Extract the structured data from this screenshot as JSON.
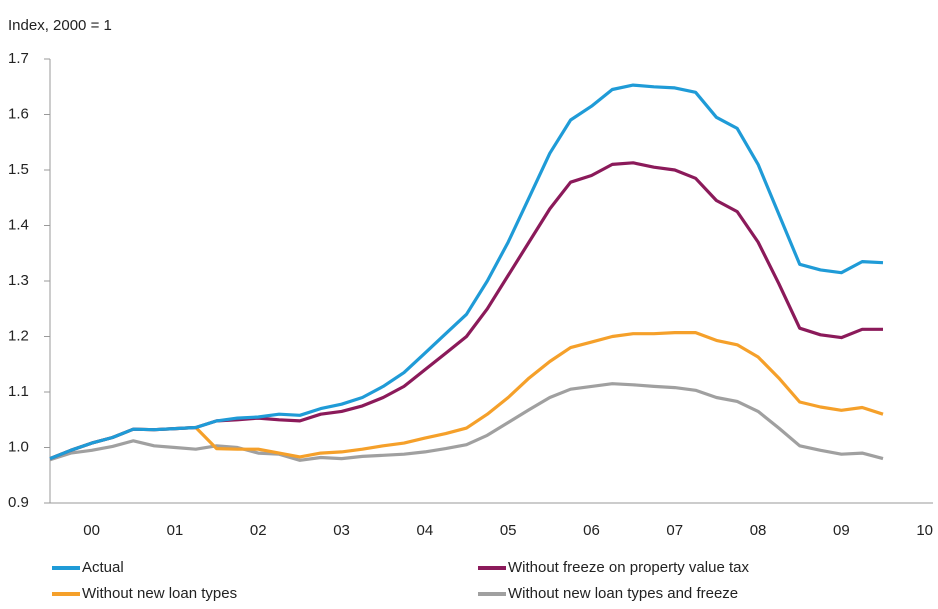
{
  "chart_data": {
    "type": "line",
    "y_label": "Index, 2000 = 1",
    "x": [
      2000,
      2000.25,
      2000.5,
      2000.75,
      2001,
      2001.25,
      2001.5,
      2001.75,
      2002,
      2002.25,
      2002.5,
      2002.75,
      2003,
      2003.25,
      2003.5,
      2003.75,
      2004,
      2004.25,
      2004.5,
      2004.75,
      2005,
      2005.25,
      2005.5,
      2005.75,
      2006,
      2006.25,
      2006.5,
      2006.75,
      2007,
      2007.25,
      2007.5,
      2007.75,
      2008,
      2008.25,
      2008.5,
      2008.75,
      2009,
      2009.25,
      2009.5,
      2009.75,
      2010
    ],
    "series": [
      {
        "name": "Actual",
        "color": "#1f9bd7",
        "values": [
          0.98,
          0.995,
          1.008,
          1.018,
          1.033,
          1.032,
          1.034,
          1.036,
          1.048,
          1.053,
          1.055,
          1.06,
          1.058,
          1.07,
          1.078,
          1.09,
          1.11,
          1.135,
          1.17,
          1.205,
          1.24,
          1.3,
          1.37,
          1.45,
          1.53,
          1.59,
          1.615,
          1.645,
          1.653,
          1.65,
          1.648,
          1.64,
          1.595,
          1.575,
          1.51,
          1.42,
          1.33,
          1.32,
          1.315,
          1.335,
          1.333
        ]
      },
      {
        "name": "Without freeze on property value tax",
        "color": "#8b1a5a",
        "values": [
          0.98,
          0.995,
          1.008,
          1.018,
          1.033,
          1.032,
          1.034,
          1.036,
          1.048,
          1.05,
          1.053,
          1.05,
          1.048,
          1.06,
          1.065,
          1.075,
          1.09,
          1.11,
          1.14,
          1.17,
          1.2,
          1.25,
          1.31,
          1.37,
          1.43,
          1.478,
          1.49,
          1.51,
          1.513,
          1.505,
          1.5,
          1.485,
          1.445,
          1.425,
          1.37,
          1.295,
          1.215,
          1.203,
          1.198,
          1.213,
          1.213
        ]
      },
      {
        "name": "Without new loan types",
        "color": "#f5a02a",
        "values": [
          0.98,
          0.995,
          1.008,
          1.018,
          1.033,
          1.032,
          1.034,
          1.036,
          0.998,
          0.997,
          0.997,
          0.99,
          0.983,
          0.99,
          0.992,
          0.997,
          1.003,
          1.008,
          1.017,
          1.025,
          1.035,
          1.06,
          1.09,
          1.125,
          1.155,
          1.18,
          1.19,
          1.2,
          1.205,
          1.205,
          1.207,
          1.207,
          1.193,
          1.185,
          1.163,
          1.125,
          1.082,
          1.073,
          1.067,
          1.072,
          1.06
        ]
      },
      {
        "name": "Without new loan types and freeze",
        "color": "#a0a0a0",
        "values": [
          0.978,
          0.99,
          0.995,
          1.002,
          1.012,
          1.003,
          1.0,
          0.997,
          1.003,
          1.0,
          0.99,
          0.988,
          0.977,
          0.982,
          0.98,
          0.984,
          0.986,
          0.988,
          0.992,
          0.998,
          1.005,
          1.022,
          1.045,
          1.068,
          1.09,
          1.105,
          1.11,
          1.115,
          1.113,
          1.11,
          1.108,
          1.103,
          1.09,
          1.083,
          1.065,
          1.035,
          1.003,
          0.995,
          0.988,
          0.99,
          0.98
        ]
      }
    ],
    "xlim": [
      2000,
      2010.6
    ],
    "xticks": [
      {
        "value": 2000.5,
        "label": "00"
      },
      {
        "value": 2001.5,
        "label": "01"
      },
      {
        "value": 2002.5,
        "label": "02"
      },
      {
        "value": 2003.5,
        "label": "03"
      },
      {
        "value": 2004.5,
        "label": "04"
      },
      {
        "value": 2005.5,
        "label": "05"
      },
      {
        "value": 2006.5,
        "label": "06"
      },
      {
        "value": 2007.5,
        "label": "07"
      },
      {
        "value": 2008.5,
        "label": "08"
      },
      {
        "value": 2009.5,
        "label": "09"
      },
      {
        "value": 2010.5,
        "label": "10"
      }
    ],
    "ylim": [
      0.9,
      1.7
    ],
    "yticks": [
      0.9,
      {
        "value": 1,
        "label": "1.0"
      },
      1.1,
      1.2,
      1.3,
      1.4,
      1.5,
      1.6,
      1.7
    ]
  }
}
